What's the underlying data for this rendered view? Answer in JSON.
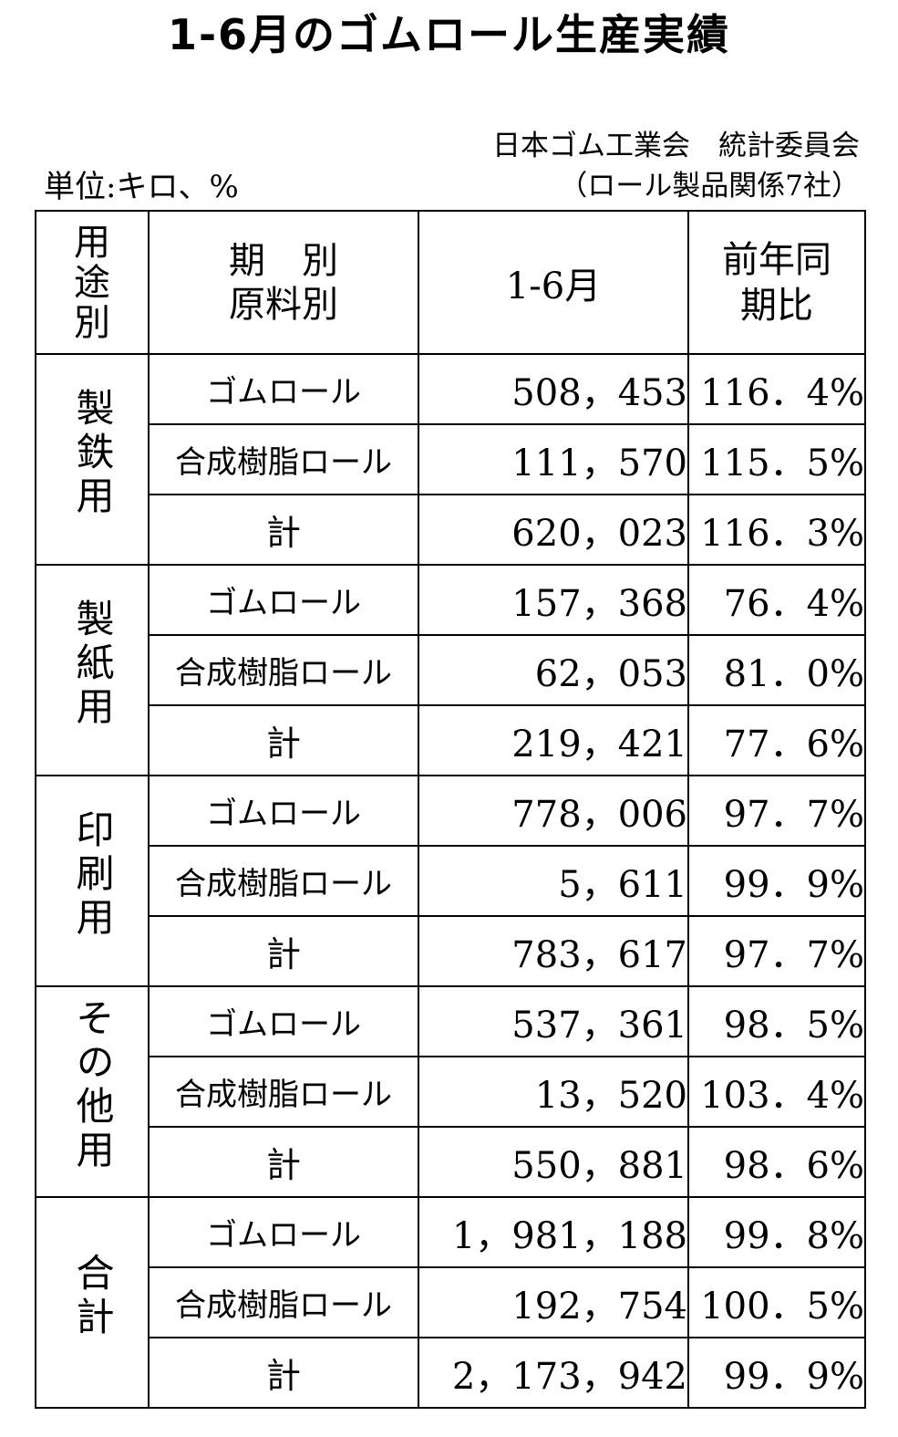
{
  "title": "1-6月のゴムロール生産実績",
  "org": "日本ゴム工業会　統計委員会",
  "unit_label": "単位:キロ、%",
  "members_note": "（ロール製品関係7社）",
  "header": {
    "use_label": [
      "用",
      "途",
      "別"
    ],
    "material_label": [
      "期　別",
      "原料別"
    ],
    "period_label": "1-6月",
    "ratio_label": [
      "前年同",
      "期比"
    ]
  },
  "groups": [
    {
      "use": "製鉄用",
      "rows": [
        {
          "material": "ゴムロール",
          "value": "508，453",
          "ratio": "116．4%"
        },
        {
          "material": "合成樹脂ロール",
          "value": "111，570",
          "ratio": "115．5%"
        },
        {
          "material": "計",
          "value": "620，023",
          "ratio": "116．3%"
        }
      ]
    },
    {
      "use": "製紙用",
      "rows": [
        {
          "material": "ゴムロール",
          "value": "157，368",
          "ratio": "76．4%"
        },
        {
          "material": "合成樹脂ロール",
          "value": "62，053",
          "ratio": "81．0%"
        },
        {
          "material": "計",
          "value": "219，421",
          "ratio": "77．6%"
        }
      ]
    },
    {
      "use": "印刷用",
      "rows": [
        {
          "material": "ゴムロール",
          "value": "778，006",
          "ratio": "97．7%"
        },
        {
          "material": "合成樹脂ロール",
          "value": "5，611",
          "ratio": "99．9%"
        },
        {
          "material": "計",
          "value": "783，617",
          "ratio": "97．7%"
        }
      ]
    },
    {
      "use": "その他用",
      "rows": [
        {
          "material": "ゴムロール",
          "value": "537，361",
          "ratio": "98．5%"
        },
        {
          "material": "合成樹脂ロール",
          "value": "13，520",
          "ratio": "103．4%"
        },
        {
          "material": "計",
          "value": "550，881",
          "ratio": "98．6%"
        }
      ]
    },
    {
      "use": "合計",
      "rows": [
        {
          "material": "ゴムロール",
          "value": "1，981，188",
          "ratio": "99．8%"
        },
        {
          "material": "合成樹脂ロール",
          "value": "192，754",
          "ratio": "100．5%"
        },
        {
          "material": "計",
          "value": "2，173，942",
          "ratio": "99．9%"
        }
      ]
    }
  ]
}
